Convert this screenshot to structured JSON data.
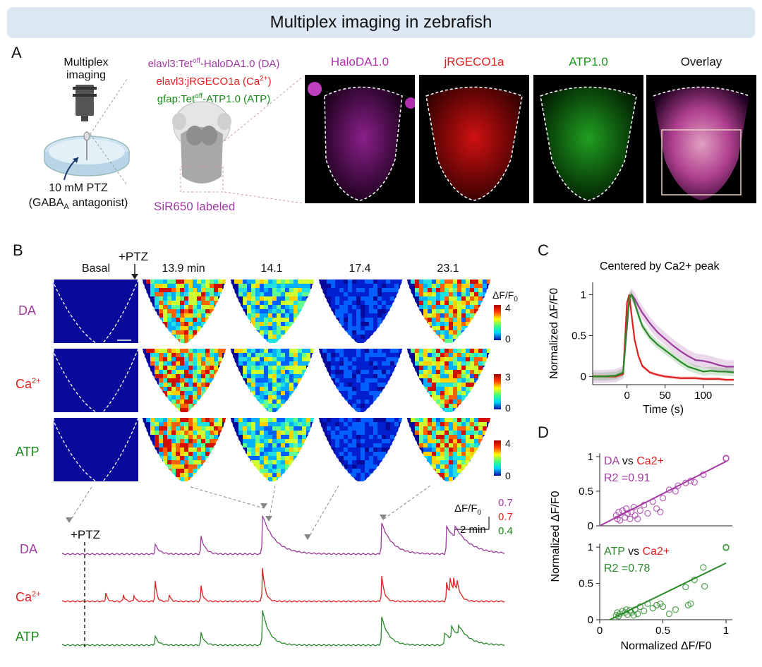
{
  "banner": "Multiplex imaging in zebrafish",
  "panels": {
    "a": "A",
    "b": "B",
    "c": "C",
    "d": "D"
  },
  "panelA": {
    "imaging_label_1": "Multiplex",
    "imaging_label_2": "imaging",
    "ptz_label_1": "10 mM PTZ",
    "ptz_label_2": "(GABA",
    "ptz_label_sub": "A",
    "ptz_label_3": " antagonist)",
    "line1_pre": "elavl3:Tet",
    "line1_sup": "off",
    "line1_post": "-HaloDA1.0 (DA)",
    "line2_pre": "elavl3:jRGECO1a (Ca",
    "line2_sup": "2+",
    "line2_post": ")",
    "line3_pre": "gfap:Tet",
    "line3_sup": "off",
    "line3_post": "-ATP1.0 (ATP)",
    "sir_label": "SiR650 labeled",
    "images": [
      {
        "title": "HaloDA1.0",
        "color": "#b030b0"
      },
      {
        "title": "jRGECO1a",
        "color": "#e02020"
      },
      {
        "title": "ATP1.0",
        "color": "#1a9a1a"
      },
      {
        "title": "Overlay",
        "color": "#111111"
      }
    ]
  },
  "panelB": {
    "ptz_marker": "+PTZ",
    "column_titles": [
      "Basal",
      "13.9 min",
      "14.1",
      "17.4",
      "23.1"
    ],
    "row_labels": [
      {
        "pre": "DA",
        "sup": "",
        "color": "#a33aa3"
      },
      {
        "pre": "Ca",
        "sup": "2+",
        "color": "#e02020"
      },
      {
        "pre": "ATP",
        "sup": "",
        "color": "#1a8a1a"
      }
    ],
    "colorbar_title_pre": "ΔF/F",
    "colorbar_title_sub": "0",
    "colorbars": [
      {
        "max": "4",
        "min": "0"
      },
      {
        "max": "3",
        "min": "0"
      },
      {
        "max": "4",
        "min": "0"
      }
    ],
    "trace_labels": [
      {
        "pre": "DA",
        "sup": "",
        "color": "#a33aa3"
      },
      {
        "pre": "Ca",
        "sup": "2+",
        "color": "#e02020"
      },
      {
        "pre": "ATP",
        "sup": "",
        "color": "#1a8a1a"
      }
    ],
    "trace_ptz": "+PTZ",
    "scale_title_pre": "ΔF/F",
    "scale_title_sub": "0",
    "scale_time": "2 min",
    "scale_values": [
      {
        "v": "0.7",
        "color": "#a33aa3"
      },
      {
        "v": "0.7",
        "color": "#e02020"
      },
      {
        "v": "0.4",
        "color": "#1a8a1a"
      }
    ]
  },
  "chart_data": [
    {
      "type": "line",
      "title": "Centered by Ca2+ peak",
      "xlabel": "Time (s)",
      "ylabel": "Normalized ΔF/F0",
      "xlim": [
        -45,
        140
      ],
      "ylim": [
        -0.1,
        1.15
      ],
      "xticks": [
        "0",
        "50",
        "100"
      ],
      "yticks": [
        "0",
        "0.5",
        "1"
      ],
      "x": [
        -45,
        -30,
        -15,
        -5,
        0,
        3,
        6,
        10,
        15,
        20,
        30,
        40,
        50,
        60,
        70,
        80,
        90,
        100,
        110,
        120,
        130,
        140
      ],
      "series": [
        {
          "name": "DA",
          "color": "#9a3a9a",
          "values": [
            0.0,
            0.0,
            0.01,
            0.05,
            0.6,
            0.95,
            1.0,
            0.95,
            0.86,
            0.78,
            0.65,
            0.54,
            0.46,
            0.38,
            0.31,
            0.25,
            0.2,
            0.19,
            0.17,
            0.14,
            0.12,
            0.12
          ]
        },
        {
          "name": "Ca2+",
          "color": "#e02020",
          "values": [
            0.0,
            0.0,
            0.0,
            0.03,
            0.9,
            1.0,
            0.75,
            0.45,
            0.25,
            0.13,
            0.05,
            0.02,
            0.0,
            -0.01,
            -0.02,
            -0.02,
            -0.02,
            -0.03,
            -0.03,
            -0.03,
            -0.04,
            -0.04
          ]
        },
        {
          "name": "ATP",
          "color": "#2a8a2a",
          "values": [
            0.0,
            0.0,
            0.01,
            0.05,
            0.65,
            0.97,
            1.0,
            0.9,
            0.75,
            0.62,
            0.48,
            0.39,
            0.32,
            0.25,
            0.18,
            0.12,
            0.09,
            0.06,
            0.07,
            0.06,
            0.06,
            0.05
          ]
        }
      ]
    },
    {
      "type": "scatter",
      "title": "DA vs Ca2+",
      "annotation": "R2 =0.91",
      "xlabel": "",
      "ylabel": "Normalized ΔF/F0",
      "xlim": [
        0,
        1.05
      ],
      "ylim": [
        0,
        1.05
      ],
      "yticks": [
        "0",
        "0.5",
        "1"
      ],
      "fit": [
        [
          0,
          0
        ],
        [
          1,
          0.93
        ]
      ],
      "color": "#a33aa3",
      "points": [
        [
          0.13,
          0.15
        ],
        [
          0.14,
          0.1
        ],
        [
          0.15,
          0.2
        ],
        [
          0.16,
          0.08
        ],
        [
          0.18,
          0.22
        ],
        [
          0.2,
          0.12
        ],
        [
          0.21,
          0.25
        ],
        [
          0.22,
          0.18
        ],
        [
          0.24,
          0.1
        ],
        [
          0.25,
          0.2
        ],
        [
          0.27,
          0.27
        ],
        [
          0.28,
          0.15
        ],
        [
          0.3,
          0.1
        ],
        [
          0.32,
          0.22
        ],
        [
          0.35,
          0.3
        ],
        [
          0.38,
          0.18
        ],
        [
          0.42,
          0.35
        ],
        [
          0.45,
          0.25
        ],
        [
          0.48,
          0.2
        ],
        [
          0.5,
          0.4
        ],
        [
          0.55,
          0.52
        ],
        [
          0.6,
          0.5
        ],
        [
          0.62,
          0.58
        ],
        [
          0.68,
          0.62
        ],
        [
          0.72,
          0.65
        ],
        [
          0.75,
          0.63
        ],
        [
          0.82,
          0.74
        ],
        [
          1.0,
          0.97
        ],
        [
          1.0,
          0.98
        ]
      ]
    },
    {
      "type": "scatter",
      "title": "ATP vs Ca2+",
      "annotation": "R2 =0.78",
      "xlabel": "Normalized ΔF/F0",
      "ylabel": "",
      "xlim": [
        0,
        1.05
      ],
      "ylim": [
        0,
        1.05
      ],
      "xticks": [
        "0",
        "0.5",
        "1"
      ],
      "yticks": [
        "0",
        "0.5",
        "1"
      ],
      "fit": [
        [
          0.08,
          0
        ],
        [
          1,
          0.78
        ]
      ],
      "color": "#2a8a2a",
      "points": [
        [
          0.13,
          0.06
        ],
        [
          0.14,
          0.1
        ],
        [
          0.15,
          0.05
        ],
        [
          0.16,
          0.08
        ],
        [
          0.18,
          0.12
        ],
        [
          0.2,
          0.1
        ],
        [
          0.21,
          0.14
        ],
        [
          0.22,
          0.07
        ],
        [
          0.24,
          0.13
        ],
        [
          0.25,
          0.1
        ],
        [
          0.27,
          0.06
        ],
        [
          0.28,
          0.14
        ],
        [
          0.3,
          0.08
        ],
        [
          0.32,
          0.18
        ],
        [
          0.35,
          0.12
        ],
        [
          0.38,
          0.22
        ],
        [
          0.42,
          0.16
        ],
        [
          0.45,
          0.2
        ],
        [
          0.48,
          0.22
        ],
        [
          0.5,
          0.18
        ],
        [
          0.55,
          0.08
        ],
        [
          0.6,
          0.14
        ],
        [
          0.68,
          0.45
        ],
        [
          0.7,
          0.2
        ],
        [
          0.72,
          0.22
        ],
        [
          0.75,
          0.55
        ],
        [
          0.82,
          0.72
        ],
        [
          0.83,
          0.46
        ],
        [
          1.0,
          1.0
        ],
        [
          1.0,
          0.99
        ]
      ]
    }
  ]
}
